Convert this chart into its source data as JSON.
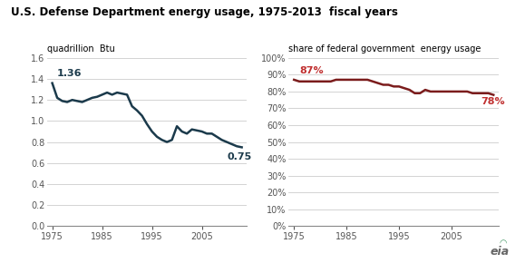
{
  "title_part1": "U.S. Defense Department energy usage, 1975-2013",
  "title_part2": "fiscal years",
  "ylabel_left": "quadrillion  Btu",
  "ylabel_right": "share of federal government  energy usage",
  "left_line_color": "#1b3a4b",
  "right_line_color": "#7b1c1c",
  "right_annotation_color": "#c03030",
  "title_color": "#000000",
  "left_data": {
    "years": [
      1975,
      1976,
      1977,
      1978,
      1979,
      1980,
      1981,
      1982,
      1983,
      1984,
      1985,
      1986,
      1987,
      1988,
      1989,
      1990,
      1991,
      1992,
      1993,
      1994,
      1995,
      1996,
      1997,
      1998,
      1999,
      2000,
      2001,
      2002,
      2003,
      2004,
      2005,
      2006,
      2007,
      2008,
      2009,
      2010,
      2011,
      2012,
      2013
    ],
    "values": [
      1.36,
      1.22,
      1.19,
      1.18,
      1.2,
      1.19,
      1.18,
      1.2,
      1.22,
      1.23,
      1.25,
      1.27,
      1.25,
      1.27,
      1.26,
      1.25,
      1.14,
      1.1,
      1.05,
      0.97,
      0.9,
      0.85,
      0.82,
      0.8,
      0.82,
      0.95,
      0.9,
      0.88,
      0.92,
      0.91,
      0.9,
      0.88,
      0.88,
      0.85,
      0.82,
      0.8,
      0.78,
      0.76,
      0.75
    ]
  },
  "right_data": {
    "years": [
      1975,
      1976,
      1977,
      1978,
      1979,
      1980,
      1981,
      1982,
      1983,
      1984,
      1985,
      1986,
      1987,
      1988,
      1989,
      1990,
      1991,
      1992,
      1993,
      1994,
      1995,
      1996,
      1997,
      1998,
      1999,
      2000,
      2001,
      2002,
      2003,
      2004,
      2005,
      2006,
      2007,
      2008,
      2009,
      2010,
      2011,
      2012,
      2013
    ],
    "values": [
      0.87,
      0.86,
      0.86,
      0.86,
      0.86,
      0.86,
      0.86,
      0.86,
      0.87,
      0.87,
      0.87,
      0.87,
      0.87,
      0.87,
      0.87,
      0.86,
      0.85,
      0.84,
      0.84,
      0.83,
      0.83,
      0.82,
      0.81,
      0.79,
      0.79,
      0.81,
      0.8,
      0.8,
      0.8,
      0.8,
      0.8,
      0.8,
      0.8,
      0.8,
      0.79,
      0.79,
      0.79,
      0.79,
      0.78
    ]
  },
  "left_ylim": [
    0.0,
    1.6
  ],
  "left_yticks": [
    0.0,
    0.2,
    0.4,
    0.6,
    0.8,
    1.0,
    1.2,
    1.4,
    1.6
  ],
  "right_ylim": [
    0.0,
    1.0
  ],
  "right_yticks": [
    0.0,
    0.1,
    0.2,
    0.3,
    0.4,
    0.5,
    0.6,
    0.7,
    0.8,
    0.9,
    1.0
  ],
  "xticks": [
    1975,
    1985,
    1995,
    2005
  ],
  "xlim": [
    1974,
    2014
  ],
  "left_start_label": "1.36",
  "left_end_label": "0.75",
  "right_start_label": "87%",
  "right_end_label": "78%",
  "bg_color": "#ffffff",
  "grid_color": "#cccccc",
  "line_width": 1.8
}
